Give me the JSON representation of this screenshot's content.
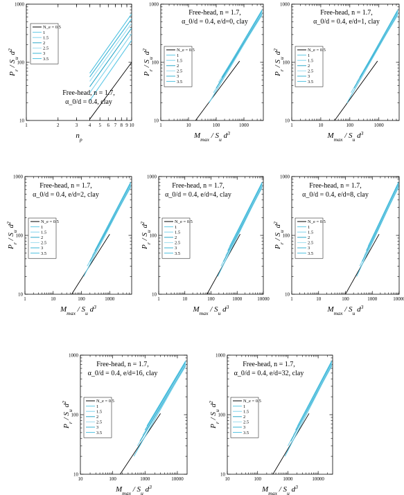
{
  "chart_data": [
    {
      "type": "line",
      "x_scale": "log",
      "y_scale": "log",
      "xlim": [
        1,
        10
      ],
      "ylim": [
        10,
        1000
      ],
      "x_ticks": [
        1,
        2,
        3,
        4,
        5,
        6,
        7,
        8,
        9,
        10
      ],
      "x_tick_labels": [
        "1",
        "2",
        "3",
        "4",
        "5",
        "6",
        "7",
        "8",
        "9",
        "10"
      ],
      "y_ticks": [
        10,
        100,
        1000
      ],
      "y_tick_labels": [
        "10",
        "100",
        "1000"
      ],
      "xlabel": "n_p",
      "ylabel": "P_r / S_u d^2",
      "annotation": [
        "Free-head, n = 1.7,",
        "α_0/d = 0.4, clay"
      ],
      "legend": [
        "N_e = 0.5",
        "1",
        "1.5",
        "2",
        "2.5",
        "3",
        "3.5"
      ],
      "series": [
        {
          "name": "0.5",
          "x": [
            4,
            10
          ],
          "y": [
            10.5,
            100
          ]
        },
        {
          "name": "1",
          "x": [
            4,
            10
          ],
          "y": [
            22,
            240
          ]
        },
        {
          "name": "1.5",
          "x": [
            4,
            10
          ],
          "y": [
            30,
            310
          ]
        },
        {
          "name": "2",
          "x": [
            4,
            10
          ],
          "y": [
            38,
            390
          ]
        },
        {
          "name": "2.5",
          "x": [
            4,
            10
          ],
          "y": [
            47,
            470
          ]
        },
        {
          "name": "3",
          "x": [
            4,
            10
          ],
          "y": [
            56,
            560
          ]
        },
        {
          "name": "3.5",
          "x": [
            4,
            10
          ],
          "y": [
            65,
            680
          ]
        }
      ]
    },
    {
      "type": "line",
      "x_scale": "log",
      "y_scale": "log",
      "xlim": [
        1,
        5000
      ],
      "ylim": [
        10,
        1000
      ],
      "x_ticks": [
        1,
        10,
        100,
        1000
      ],
      "x_tick_labels": [
        "1",
        "10",
        "100",
        "1000"
      ],
      "y_ticks": [
        10,
        100,
        1000
      ],
      "y_tick_labels": [
        "10",
        "100",
        "1000"
      ],
      "xlabel": "M_max / S_u d^3",
      "ylabel": "P_r / S_u d^2",
      "annotation": [
        "Free-head, n = 1.7,",
        "α_0/d = 0.4, e/d=0, clay"
      ],
      "legend": [
        "N_e = 0.5",
        "1",
        "1.5",
        "2",
        "2.5",
        "3",
        "3.5"
      ],
      "series": [
        {
          "name": "0.5",
          "x": [
            18,
            700
          ],
          "y": [
            10,
            105
          ]
        },
        {
          "name": "1",
          "x": [
            55,
            4500
          ],
          "y": [
            20,
            680
          ]
        },
        {
          "name": "1.5",
          "x": [
            80,
            4500
          ],
          "y": [
            30,
            650
          ]
        },
        {
          "name": "2",
          "x": [
            100,
            4500
          ],
          "y": [
            36,
            700
          ]
        },
        {
          "name": "2.5",
          "x": [
            120,
            4500
          ],
          "y": [
            45,
            720
          ]
        },
        {
          "name": "3",
          "x": [
            160,
            4500
          ],
          "y": [
            55,
            760
          ]
        },
        {
          "name": "3.5",
          "x": [
            200,
            4500
          ],
          "y": [
            65,
            800
          ]
        }
      ]
    },
    {
      "type": "line",
      "x_scale": "log",
      "y_scale": "log",
      "xlim": [
        1,
        5000
      ],
      "ylim": [
        10,
        1000
      ],
      "x_ticks": [
        1,
        10,
        100,
        1000
      ],
      "x_tick_labels": [
        "1",
        "10",
        "100",
        "1000"
      ],
      "y_ticks": [
        10,
        100,
        1000
      ],
      "y_tick_labels": [
        "10",
        "100",
        "1000"
      ],
      "xlabel": "M_max / S_u d^3",
      "ylabel": "P_r / S_u d^2",
      "annotation": [
        "Free-head, n = 1.7,",
        "α_0/d = 0.4, e/d=1, clay"
      ],
      "legend": [
        "N_e = 0.5",
        "1",
        "1.5",
        "2",
        "2.5",
        "3",
        "3.5"
      ],
      "series": [
        {
          "name": "0.5",
          "x": [
            30,
            900
          ],
          "y": [
            10,
            105
          ]
        },
        {
          "name": "1",
          "x": [
            80,
            4500
          ],
          "y": [
            20,
            680
          ]
        },
        {
          "name": "1.5",
          "x": [
            110,
            4500
          ],
          "y": [
            30,
            650
          ]
        },
        {
          "name": "2",
          "x": [
            140,
            4500
          ],
          "y": [
            36,
            700
          ]
        },
        {
          "name": "2.5",
          "x": [
            170,
            4500
          ],
          "y": [
            45,
            720
          ]
        },
        {
          "name": "3",
          "x": [
            220,
            4500
          ],
          "y": [
            55,
            760
          ]
        },
        {
          "name": "3.5",
          "x": [
            270,
            4500
          ],
          "y": [
            65,
            800
          ]
        }
      ]
    },
    {
      "type": "line",
      "x_scale": "log",
      "y_scale": "log",
      "xlim": [
        1,
        6000
      ],
      "ylim": [
        10,
        1000
      ],
      "x_ticks": [
        1,
        10,
        100,
        1000
      ],
      "x_tick_labels": [
        "1",
        "10",
        "100",
        "1000"
      ],
      "y_ticks": [
        10,
        100,
        1000
      ],
      "y_tick_labels": [
        "10",
        "100",
        "1000"
      ],
      "xlabel": "M_max / S_u d^3",
      "ylabel": "P_r / S_u d^2",
      "annotation": [
        "Free-head, n = 1.7,",
        "α_0/d = 0.4, e/d=2, clay"
      ],
      "legend": [
        "N_e = 0.5",
        "1",
        "1.5",
        "2",
        "2.5",
        "3",
        "3.5"
      ],
      "series": [
        {
          "name": "0.5",
          "x": [
            45,
            1000
          ],
          "y": [
            10,
            105
          ]
        },
        {
          "name": "1",
          "x": [
            120,
            5500
          ],
          "y": [
            20,
            680
          ]
        },
        {
          "name": "1.5",
          "x": [
            160,
            5500
          ],
          "y": [
            30,
            650
          ]
        },
        {
          "name": "2",
          "x": [
            200,
            5500
          ],
          "y": [
            36,
            700
          ]
        },
        {
          "name": "2.5",
          "x": [
            240,
            5500
          ],
          "y": [
            45,
            720
          ]
        },
        {
          "name": "3",
          "x": [
            300,
            5500
          ],
          "y": [
            55,
            760
          ]
        },
        {
          "name": "3.5",
          "x": [
            360,
            5500
          ],
          "y": [
            65,
            800
          ]
        }
      ]
    },
    {
      "type": "line",
      "x_scale": "log",
      "y_scale": "log",
      "xlim": [
        1,
        10000
      ],
      "ylim": [
        10,
        1000
      ],
      "x_ticks": [
        1,
        10,
        100,
        1000,
        10000
      ],
      "x_tick_labels": [
        "1",
        "10",
        "100",
        "1000",
        "10000"
      ],
      "y_ticks": [
        10,
        100,
        1000
      ],
      "y_tick_labels": [
        "10",
        "100",
        "1000"
      ],
      "xlabel": "M_max / S_u d^3",
      "ylabel": "P_r / S_u d^2",
      "annotation": [
        "Free-head, n = 1.7,",
        "α_0/d = 0.4, e/d=4, clay"
      ],
      "legend": [
        "N_e = 0.5",
        "1",
        "1.5",
        "2",
        "2.5",
        "3",
        "3.5"
      ],
      "series": [
        {
          "name": "0.5",
          "x": [
            70,
            1300
          ],
          "y": [
            10,
            105
          ]
        },
        {
          "name": "1",
          "x": [
            180,
            9000
          ],
          "y": [
            20,
            680
          ]
        },
        {
          "name": "1.5",
          "x": [
            240,
            9000
          ],
          "y": [
            30,
            650
          ]
        },
        {
          "name": "2",
          "x": [
            300,
            9000
          ],
          "y": [
            36,
            700
          ]
        },
        {
          "name": "2.5",
          "x": [
            360,
            9000
          ],
          "y": [
            45,
            720
          ]
        },
        {
          "name": "3",
          "x": [
            440,
            9000
          ],
          "y": [
            55,
            760
          ]
        },
        {
          "name": "3.5",
          "x": [
            520,
            9000
          ],
          "y": [
            65,
            800
          ]
        }
      ]
    },
    {
      "type": "line",
      "x_scale": "log",
      "y_scale": "log",
      "xlim": [
        1,
        10000
      ],
      "ylim": [
        10,
        1000
      ],
      "x_ticks": [
        1,
        10,
        100,
        1000,
        10000
      ],
      "x_tick_labels": [
        "1",
        "10",
        "100",
        "1000",
        "10000"
      ],
      "y_ticks": [
        10,
        100,
        1000
      ],
      "y_tick_labels": [
        "10",
        "100",
        "1000"
      ],
      "xlabel": "M_max / S_u d^3",
      "ylabel": "P_r / S_u d^2",
      "annotation": [
        "Free-head, n = 1.7,",
        "α_0/d = 0.4, e/d=8, clay"
      ],
      "legend": [
        "N_e = 0.5",
        "1",
        "1.5",
        "2",
        "2.5",
        "3",
        "3.5"
      ],
      "series": [
        {
          "name": "0.5",
          "x": [
            100,
            1800
          ],
          "y": [
            10,
            105
          ]
        },
        {
          "name": "1",
          "x": [
            260,
            9500
          ],
          "y": [
            20,
            680
          ]
        },
        {
          "name": "1.5",
          "x": [
            340,
            9500
          ],
          "y": [
            30,
            650
          ]
        },
        {
          "name": "2",
          "x": [
            420,
            9500
          ],
          "y": [
            36,
            700
          ]
        },
        {
          "name": "2.5",
          "x": [
            500,
            9500
          ],
          "y": [
            45,
            720
          ]
        },
        {
          "name": "3",
          "x": [
            600,
            9500
          ],
          "y": [
            55,
            760
          ]
        },
        {
          "name": "3.5",
          "x": [
            700,
            9500
          ],
          "y": [
            65,
            800
          ]
        }
      ]
    },
    {
      "type": "line",
      "x_scale": "log",
      "y_scale": "log",
      "xlim": [
        10,
        20000
      ],
      "ylim": [
        10,
        1000
      ],
      "x_ticks": [
        10,
        100,
        1000,
        10000
      ],
      "x_tick_labels": [
        "10",
        "100",
        "1000",
        "10000"
      ],
      "y_ticks": [
        10,
        100,
        1000
      ],
      "y_tick_labels": [
        "10",
        "100",
        "1000"
      ],
      "xlabel": "M_max / S_u d^3",
      "ylabel": "P_r / S_u d^2",
      "annotation": [
        "Free-head, n = 1.7,",
        "α_0/d = 0.4, e/d=16, clay"
      ],
      "legend": [
        "N_e = 0.5",
        "1",
        "1.5",
        "2",
        "2.5",
        "3",
        "3.5"
      ],
      "series": [
        {
          "name": "0.5",
          "x": [
            170,
            3000
          ],
          "y": [
            10,
            105
          ]
        },
        {
          "name": "1",
          "x": [
            450,
            18000
          ],
          "y": [
            20,
            680
          ]
        },
        {
          "name": "1.5",
          "x": [
            580,
            18000
          ],
          "y": [
            30,
            650
          ]
        },
        {
          "name": "2",
          "x": [
            700,
            18000
          ],
          "y": [
            36,
            700
          ]
        },
        {
          "name": "2.5",
          "x": [
            840,
            18000
          ],
          "y": [
            45,
            720
          ]
        },
        {
          "name": "3",
          "x": [
            1000,
            18000
          ],
          "y": [
            55,
            760
          ]
        },
        {
          "name": "3.5",
          "x": [
            1150,
            18000
          ],
          "y": [
            65,
            800
          ]
        }
      ]
    },
    {
      "type": "line",
      "x_scale": "log",
      "y_scale": "log",
      "xlim": [
        10,
        30000
      ],
      "ylim": [
        10,
        1000
      ],
      "x_ticks": [
        10,
        100,
        1000,
        10000
      ],
      "x_tick_labels": [
        "10",
        "100",
        "1000",
        "10000"
      ],
      "y_ticks": [
        10,
        100,
        1000
      ],
      "y_tick_labels": [
        "10",
        "100",
        "1000"
      ],
      "xlabel": "M_max / S_u d^3",
      "ylabel": "P_r / S_u d^2",
      "annotation": [
        "Free-head, n = 1.7,",
        "α_0/d = 0.4, e/d=32, clay"
      ],
      "legend": [
        "N_e = 0.5",
        "1",
        "1.5",
        "2",
        "2.5",
        "3",
        "3.5"
      ],
      "series": [
        {
          "name": "0.5",
          "x": [
            320,
            5000
          ],
          "y": [
            10,
            105
          ]
        },
        {
          "name": "1",
          "x": [
            800,
            28000
          ],
          "y": [
            20,
            680
          ]
        },
        {
          "name": "1.5",
          "x": [
            1000,
            28000
          ],
          "y": [
            30,
            650
          ]
        },
        {
          "name": "2",
          "x": [
            1250,
            28000
          ],
          "y": [
            36,
            700
          ]
        },
        {
          "name": "2.5",
          "x": [
            1500,
            28000
          ],
          "y": [
            45,
            720
          ]
        },
        {
          "name": "3",
          "x": [
            1800,
            28000
          ],
          "y": [
            55,
            760
          ]
        },
        {
          "name": "3.5",
          "x": [
            2100,
            28000
          ],
          "y": [
            65,
            800
          ]
        }
      ]
    }
  ],
  "colors": {
    "0.5": "#000000",
    "1": "#5ec8e6",
    "1.5": "#7fd4ec",
    "2": "#2aa8c9",
    "2.5": "#9edcef",
    "3": "#38b4d6",
    "3.5": "#4cc0e0"
  }
}
